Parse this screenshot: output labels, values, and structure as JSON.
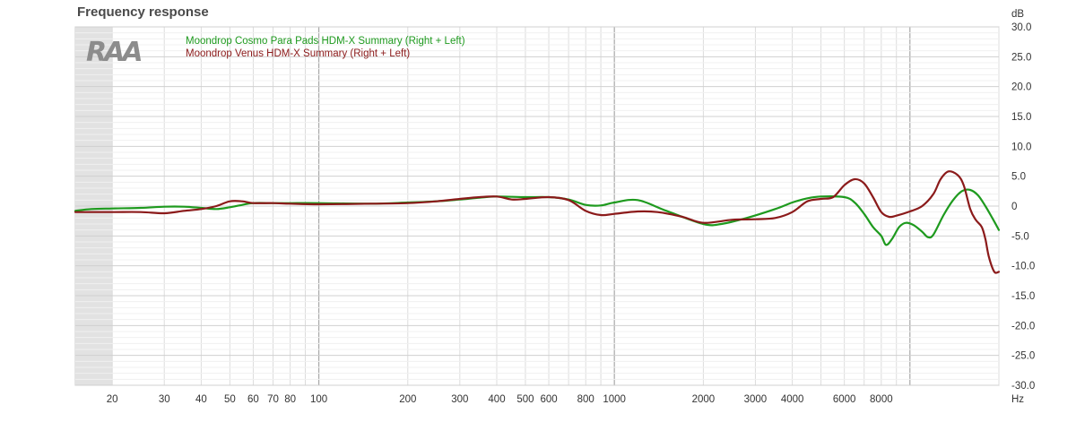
{
  "chart_data": {
    "type": "line",
    "title": "Frequency response",
    "ylabel": "dB",
    "xlabel": "Hz",
    "x_scale": "log",
    "xlim": [
      15,
      20000
    ],
    "ylim": [
      -30,
      30
    ],
    "grid": true,
    "legend_position": "top-left",
    "logo_text": "RAA",
    "x_ticks": [
      20,
      30,
      40,
      50,
      60,
      70,
      80,
      100,
      200,
      300,
      400,
      500,
      600,
      800,
      1000,
      2000,
      3000,
      4000,
      6000,
      8000
    ],
    "x_tick_labels": [
      "20",
      "30",
      "40",
      "50",
      "60",
      "70",
      "80",
      "100",
      "200",
      "300",
      "400",
      "500",
      "600",
      "800",
      "1000",
      "2000",
      "3000",
      "4000",
      "6000",
      "8000"
    ],
    "y_ticks": [
      30,
      25,
      20,
      15,
      10,
      5,
      0,
      -5,
      -10,
      -15,
      -20,
      -25,
      -30
    ],
    "y_tick_labels": [
      "30.0",
      "25.0",
      "20.0",
      "15.0",
      "10.0",
      "5.0",
      "0",
      "-5.0",
      "-10.0",
      "-15.0",
      "-20.0",
      "-25.0",
      "-30.0"
    ],
    "series": [
      {
        "name": "Moondrop Cosmo Para Pads HDM-X Summary (Right + Left)",
        "color": "#1e9a1e",
        "points": [
          [
            15,
            -0.8
          ],
          [
            17,
            -0.5
          ],
          [
            20,
            -0.4
          ],
          [
            25,
            -0.3
          ],
          [
            30,
            -0.1
          ],
          [
            35,
            -0.1
          ],
          [
            40,
            -0.3
          ],
          [
            45,
            -0.5
          ],
          [
            50,
            -0.2
          ],
          [
            55,
            0.2
          ],
          [
            60,
            0.5
          ],
          [
            70,
            0.5
          ],
          [
            80,
            0.5
          ],
          [
            100,
            0.5
          ],
          [
            150,
            0.4
          ],
          [
            200,
            0.6
          ],
          [
            250,
            0.8
          ],
          [
            300,
            1.1
          ],
          [
            350,
            1.4
          ],
          [
            400,
            1.6
          ],
          [
            500,
            1.5
          ],
          [
            600,
            1.5
          ],
          [
            700,
            1.1
          ],
          [
            800,
            0.2
          ],
          [
            900,
            0.1
          ],
          [
            1000,
            0.6
          ],
          [
            1200,
            1.0
          ],
          [
            1500,
            -0.8
          ],
          [
            2000,
            -3.0
          ],
          [
            2300,
            -3.0
          ],
          [
            2800,
            -2.0
          ],
          [
            3500,
            -0.5
          ],
          [
            4000,
            0.6
          ],
          [
            4500,
            1.3
          ],
          [
            5000,
            1.6
          ],
          [
            6000,
            1.5
          ],
          [
            6500,
            0.6
          ],
          [
            7000,
            -1.3
          ],
          [
            7500,
            -3.5
          ],
          [
            8000,
            -5.0
          ],
          [
            8300,
            -6.5
          ],
          [
            8700,
            -5.5
          ],
          [
            9200,
            -3.5
          ],
          [
            9700,
            -2.8
          ],
          [
            10300,
            -3.2
          ],
          [
            11000,
            -4.3
          ],
          [
            11500,
            -5.2
          ],
          [
            12000,
            -4.8
          ],
          [
            13000,
            -1.5
          ],
          [
            14000,
            1.0
          ],
          [
            15000,
            2.5
          ],
          [
            16000,
            2.7
          ],
          [
            17000,
            1.8
          ],
          [
            18000,
            0.0
          ],
          [
            19000,
            -2.0
          ],
          [
            20000,
            -4.0
          ]
        ]
      },
      {
        "name": "Moondrop Venus HDM-X Summary (Right + Left)",
        "color": "#8b1a1a",
        "points": [
          [
            15,
            -1.0
          ],
          [
            20,
            -1.0
          ],
          [
            25,
            -1.0
          ],
          [
            30,
            -1.2
          ],
          [
            35,
            -0.8
          ],
          [
            40,
            -0.5
          ],
          [
            45,
            0.0
          ],
          [
            50,
            0.8
          ],
          [
            55,
            0.8
          ],
          [
            60,
            0.5
          ],
          [
            70,
            0.5
          ],
          [
            80,
            0.4
          ],
          [
            100,
            0.3
          ],
          [
            150,
            0.4
          ],
          [
            200,
            0.5
          ],
          [
            250,
            0.8
          ],
          [
            300,
            1.2
          ],
          [
            350,
            1.5
          ],
          [
            400,
            1.6
          ],
          [
            450,
            1.1
          ],
          [
            500,
            1.2
          ],
          [
            600,
            1.5
          ],
          [
            700,
            1.0
          ],
          [
            800,
            -0.8
          ],
          [
            900,
            -1.5
          ],
          [
            1000,
            -1.3
          ],
          [
            1200,
            -0.9
          ],
          [
            1400,
            -1.0
          ],
          [
            1700,
            -1.8
          ],
          [
            2000,
            -2.8
          ],
          [
            2500,
            -2.3
          ],
          [
            3000,
            -2.2
          ],
          [
            3500,
            -2.0
          ],
          [
            4000,
            -1.0
          ],
          [
            4500,
            0.8
          ],
          [
            5000,
            1.2
          ],
          [
            5500,
            1.5
          ],
          [
            6000,
            3.5
          ],
          [
            6500,
            4.5
          ],
          [
            7000,
            3.8
          ],
          [
            7500,
            1.5
          ],
          [
            8000,
            -1.0
          ],
          [
            8500,
            -1.8
          ],
          [
            9000,
            -1.6
          ],
          [
            10000,
            -0.9
          ],
          [
            11000,
            0.0
          ],
          [
            12000,
            2.0
          ],
          [
            12700,
            4.5
          ],
          [
            13500,
            5.8
          ],
          [
            14500,
            5.2
          ],
          [
            15200,
            3.5
          ],
          [
            16000,
            -0.5
          ],
          [
            16700,
            -2.3
          ],
          [
            17500,
            -3.5
          ],
          [
            18000,
            -5.5
          ],
          [
            18500,
            -8.5
          ],
          [
            19300,
            -11.0
          ],
          [
            20000,
            -11.0
          ]
        ]
      }
    ]
  }
}
